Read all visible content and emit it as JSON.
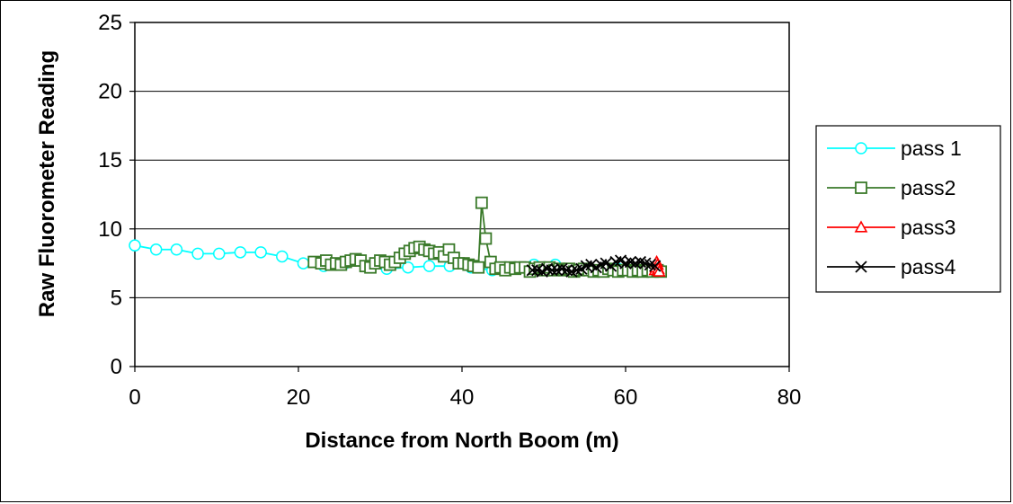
{
  "chart_data": {
    "type": "line",
    "title": "",
    "xlabel": "Distance from North Boom (m)",
    "ylabel": "Raw Fluorometer Reading",
    "xlim": [
      0,
      80
    ],
    "ylim": [
      0,
      25
    ],
    "xticks": [
      "0",
      "20",
      "40",
      "60",
      "80"
    ],
    "yticks": [
      "0",
      "5",
      "10",
      "15",
      "20",
      "25"
    ],
    "grid": "horizontal",
    "legend_position": "right",
    "series": [
      {
        "name": "pass 1",
        "color": "#00FFFF",
        "marker": "circle",
        "x": [
          0,
          2.6,
          5.1,
          7.7,
          10.3,
          12.9,
          15.4,
          18.0,
          20.6,
          23.1,
          25.7,
          28.3,
          30.8,
          33.4,
          36.0,
          38.5,
          41.1,
          43.7,
          46.2,
          48.8,
          51.4,
          53.9,
          56.5,
          59.1,
          61.6,
          64.2
        ],
        "y": [
          8.8,
          8.5,
          8.5,
          8.2,
          8.2,
          8.3,
          8.3,
          8.0,
          7.5,
          7.3,
          7.5,
          7.3,
          7.1,
          7.2,
          7.3,
          7.3,
          7.2,
          7.0,
          7.1,
          7.4,
          7.4,
          7.0,
          6.9,
          7.1,
          7.0,
          6.9
        ]
      },
      {
        "name": "pass2",
        "color": "#3A7A2A",
        "marker": "square",
        "x": [
          21.9,
          22.8,
          23.4,
          24.0,
          24.6,
          25.2,
          25.8,
          26.4,
          27.0,
          27.6,
          28.2,
          28.8,
          29.4,
          30.0,
          30.6,
          31.2,
          31.8,
          32.4,
          33.0,
          33.6,
          34.2,
          34.8,
          35.4,
          36.0,
          36.6,
          37.2,
          37.8,
          38.4,
          39.0,
          39.6,
          40.2,
          40.8,
          41.4,
          42.0,
          42.4,
          42.9,
          43.5,
          44.1,
          44.7,
          45.3,
          45.9,
          46.5,
          47.1,
          47.7,
          48.3,
          48.9,
          49.5,
          50.1,
          50.7,
          51.3,
          51.9,
          52.5,
          53.1,
          53.7,
          54.3,
          54.9,
          55.5,
          56.1,
          56.7,
          57.3,
          57.9,
          58.5,
          59.1,
          59.7,
          60.3,
          60.9,
          61.5,
          62.1,
          62.7,
          63.3,
          63.9,
          64.3
        ],
        "y": [
          7.6,
          7.5,
          7.7,
          7.4,
          7.5,
          7.4,
          7.6,
          7.7,
          7.8,
          7.7,
          7.3,
          7.2,
          7.5,
          7.7,
          7.6,
          7.4,
          7.6,
          7.9,
          8.2,
          8.4,
          8.6,
          8.7,
          8.5,
          8.4,
          8.2,
          8.3,
          8.0,
          8.5,
          7.9,
          7.5,
          7.5,
          7.4,
          7.3,
          7.2,
          11.9,
          9.3,
          7.6,
          7.1,
          7.2,
          7.0,
          7.2,
          7.1,
          7.2,
          7.2,
          6.9,
          7.1,
          7.2,
          7.0,
          7.2,
          7.0,
          7.1,
          7.0,
          7.1,
          6.9,
          7.0,
          7.1,
          7.0,
          6.9,
          7.0,
          6.9,
          7.1,
          7.0,
          6.9,
          7.0,
          7.0,
          6.9,
          7.0,
          6.9,
          7.0,
          6.9,
          7.0,
          6.9
        ]
      },
      {
        "name": "pass3",
        "color": "#FF0000",
        "marker": "triangle",
        "x": [
          63.6,
          63.7,
          63.8,
          63.9,
          64.0,
          64.1
        ],
        "y": [
          7.0,
          7.2,
          7.6,
          7.4,
          7.1,
          6.9
        ]
      },
      {
        "name": "pass4",
        "color": "#000000",
        "marker": "x",
        "x": [
          48.6,
          49.2,
          49.8,
          50.4,
          51.0,
          51.6,
          52.2,
          52.8,
          53.4,
          54.0,
          54.6,
          55.2,
          55.8,
          56.4,
          57.0,
          57.6,
          58.2,
          58.8,
          59.4,
          60.0,
          60.6,
          61.2,
          61.8,
          62.4,
          63.0,
          63.6
        ],
        "y": [
          7.0,
          7.0,
          6.9,
          7.1,
          7.0,
          7.0,
          7.1,
          7.0,
          6.9,
          7.0,
          7.1,
          7.3,
          7.4,
          7.2,
          7.4,
          7.5,
          7.3,
          7.6,
          7.7,
          7.5,
          7.6,
          7.5,
          7.6,
          7.5,
          7.4,
          7.3
        ]
      }
    ]
  }
}
